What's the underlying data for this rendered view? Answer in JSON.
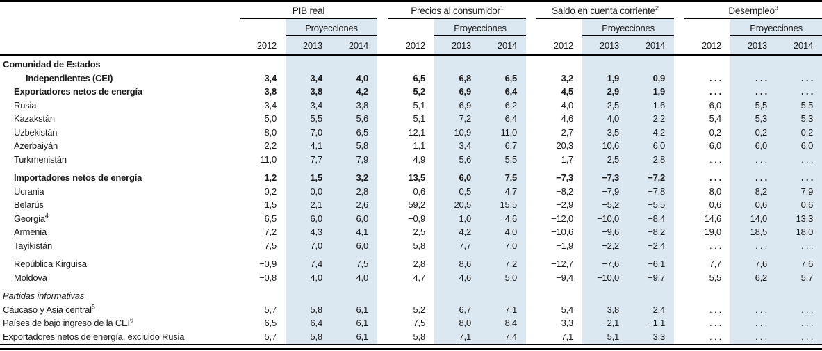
{
  "colors": {
    "band": "#dce8f1",
    "rule": "#000000",
    "text": "#1a1a1a"
  },
  "table": {
    "projections_label": "Proyecciones",
    "years": [
      "2012",
      "2013",
      "2014"
    ],
    "groups": [
      {
        "label": "PIB real",
        "sup": ""
      },
      {
        "label": "Precios al consumidor",
        "sup": "1"
      },
      {
        "label": "Saldo en cuenta corriente",
        "sup": "2"
      },
      {
        "label": "Desempleo",
        "sup": "3"
      }
    ],
    "rows": [
      {
        "label": "Comunidad de Estados",
        "sup": "",
        "indent": 0,
        "bold": true,
        "italic": false,
        "spacer_before": false,
        "values": null
      },
      {
        "label": "Independientes (CEI)",
        "sup": "",
        "indent": 2,
        "bold": true,
        "italic": false,
        "spacer_before": false,
        "values": [
          "3,4",
          "3,4",
          "4,0",
          "6,5",
          "6,8",
          "6,5",
          "3,2",
          "1,9",
          "0,9",
          ". . .",
          ". . .",
          ". . ."
        ]
      },
      {
        "label": "Exportadores netos de energía",
        "sup": "",
        "indent": 1,
        "bold": true,
        "italic": false,
        "spacer_before": false,
        "values": [
          "3,8",
          "3,8",
          "4,2",
          "5,2",
          "6,9",
          "6,4",
          "4,5",
          "2,9",
          "1,9",
          ". . .",
          ". . .",
          ". . ."
        ]
      },
      {
        "label": "Rusia",
        "sup": "",
        "indent": 1,
        "bold": false,
        "italic": false,
        "spacer_before": false,
        "values": [
          "3,4",
          "3,4",
          "3,8",
          "5,1",
          "6,9",
          "6,2",
          "4,0",
          "2,5",
          "1,6",
          "6,0",
          "5,5",
          "5,5"
        ]
      },
      {
        "label": "Kazakstán",
        "sup": "",
        "indent": 1,
        "bold": false,
        "italic": false,
        "spacer_before": false,
        "values": [
          "5,0",
          "5,5",
          "5,6",
          "5,1",
          "7,2",
          "6,4",
          "4,6",
          "4,0",
          "2,2",
          "5,4",
          "5,3",
          "5,3"
        ]
      },
      {
        "label": "Uzbekistán",
        "sup": "",
        "indent": 1,
        "bold": false,
        "italic": false,
        "spacer_before": false,
        "values": [
          "8,0",
          "7,0",
          "6,5",
          "12,1",
          "10,9",
          "11,0",
          "2,7",
          "3,5",
          "4,2",
          "0,2",
          "0,2",
          "0,2"
        ]
      },
      {
        "label": "Azerbaiyán",
        "sup": "",
        "indent": 1,
        "bold": false,
        "italic": false,
        "spacer_before": false,
        "values": [
          "2,2",
          "4,1",
          "5,8",
          "1,1",
          "3,4",
          "6,7",
          "20,3",
          "10,6",
          "6,0",
          "6,0",
          "6,0",
          "6,0"
        ]
      },
      {
        "label": "Turkmenistán",
        "sup": "",
        "indent": 1,
        "bold": false,
        "italic": false,
        "spacer_before": false,
        "values": [
          "11,0",
          "7,7",
          "7,9",
          "4,9",
          "5,6",
          "5,5",
          "1,7",
          "2,5",
          "2,8",
          ". . .",
          ". . .",
          ". . ."
        ]
      },
      {
        "label": "Importadores netos de energía",
        "sup": "",
        "indent": 1,
        "bold": true,
        "italic": false,
        "spacer_before": true,
        "values": [
          "1,2",
          "1,5",
          "3,2",
          "13,5",
          "6,0",
          "7,5",
          "−7,3",
          "−7,3",
          "−7,2",
          ". . .",
          ". . .",
          ". . ."
        ]
      },
      {
        "label": "Ucrania",
        "sup": "",
        "indent": 1,
        "bold": false,
        "italic": false,
        "spacer_before": false,
        "values": [
          "0,2",
          "0,0",
          "2,8",
          "0,6",
          "0,5",
          "4,7",
          "−8,2",
          "−7,9",
          "−7,8",
          "8,0",
          "8,2",
          "7,9"
        ]
      },
      {
        "label": "Belarús",
        "sup": "",
        "indent": 1,
        "bold": false,
        "italic": false,
        "spacer_before": false,
        "values": [
          "1,5",
          "2,1",
          "2,6",
          "59,2",
          "20,5",
          "15,5",
          "−2,9",
          "−5,2",
          "−5,5",
          "0,6",
          "0,6",
          "0,6"
        ]
      },
      {
        "label": "Georgia",
        "sup": "4",
        "indent": 1,
        "bold": false,
        "italic": false,
        "spacer_before": false,
        "values": [
          "6,5",
          "6,0",
          "6,0",
          "−0,9",
          "1,0",
          "4,6",
          "−12,0",
          "−10,0",
          "−8,4",
          "14,6",
          "14,0",
          "13,3"
        ]
      },
      {
        "label": "Armenia",
        "sup": "",
        "indent": 1,
        "bold": false,
        "italic": false,
        "spacer_before": false,
        "values": [
          "7,2",
          "4,3",
          "4,1",
          "2,5",
          "4,2",
          "4,0",
          "−10,6",
          "−9,6",
          "−8,2",
          "19,0",
          "18,5",
          "18,0"
        ]
      },
      {
        "label": "Tayikistán",
        "sup": "",
        "indent": 1,
        "bold": false,
        "italic": false,
        "spacer_before": false,
        "values": [
          "7,5",
          "7,0",
          "6,0",
          "5,8",
          "7,7",
          "7,0",
          "−1,9",
          "−2,2",
          "−2,4",
          ". . .",
          ". . .",
          ". . ."
        ]
      },
      {
        "label": "República Kirguisa",
        "sup": "",
        "indent": 1,
        "bold": false,
        "italic": false,
        "spacer_before": true,
        "values": [
          "−0,9",
          "7,4",
          "7,5",
          "2,8",
          "8,6",
          "7,2",
          "−12,7",
          "−7,6",
          "−6,1",
          "7,7",
          "7,6",
          "7,6"
        ]
      },
      {
        "label": "Moldova",
        "sup": "",
        "indent": 1,
        "bold": false,
        "italic": false,
        "spacer_before": false,
        "values": [
          "−0,8",
          "4,0",
          "4,0",
          "4,7",
          "4,6",
          "5,0",
          "−9,4",
          "−10,0",
          "−9,7",
          "5,5",
          "6,2",
          "5,7"
        ]
      },
      {
        "label": "Partidas informativas",
        "sup": "",
        "indent": 0,
        "bold": false,
        "italic": true,
        "spacer_before": true,
        "values": null
      },
      {
        "label": "Cáucaso y Asia central",
        "sup": "5",
        "indent": 0,
        "bold": false,
        "italic": false,
        "spacer_before": false,
        "values": [
          "5,7",
          "5,8",
          "6,1",
          "5,2",
          "6,7",
          "7,1",
          "5,4",
          "3,8",
          "2,4",
          ". . .",
          ". . .",
          ". . ."
        ]
      },
      {
        "label": "Países de bajo ingreso de la CEI",
        "sup": "6",
        "indent": 0,
        "bold": false,
        "italic": false,
        "spacer_before": false,
        "values": [
          "6,5",
          "6,4",
          "6,1",
          "7,5",
          "8,0",
          "8,4",
          "−3,3",
          "−2,1",
          "−1,1",
          ". . .",
          ". . .",
          ". . ."
        ]
      },
      {
        "label": "Exportadores netos de energía, excluido Rusia",
        "sup": "",
        "indent": 0,
        "bold": false,
        "italic": false,
        "spacer_before": false,
        "values": [
          "5,7",
          "5,8",
          "6,1",
          "5,8",
          "7,1",
          "7,4",
          "7,1",
          "5,1",
          "3,3",
          ". . .",
          ". . .",
          ". . ."
        ]
      }
    ]
  },
  "chart_data": {
    "type": "table",
    "title": "",
    "column_groups": [
      "PIB real",
      "Precios al consumidor",
      "Saldo en cuenta corriente",
      "Desempleo"
    ],
    "years_per_group": [
      "2012",
      "2013",
      "2014"
    ],
    "projection_years": [
      "2013",
      "2014"
    ]
  }
}
